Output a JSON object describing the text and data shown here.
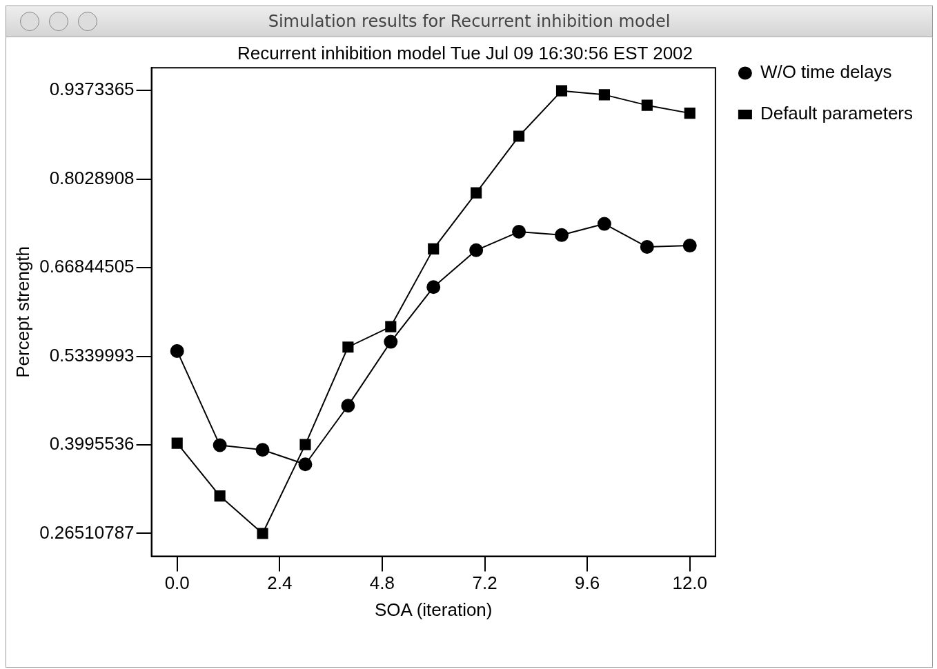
{
  "chart_data": {
    "type": "line",
    "title": "Simulation results for Recurrent inhibition model",
    "subtitle": "Recurrent inhibition model Tue Jul 09 16:30:56 EST 2002",
    "xlabel": "SOA (iteration)",
    "ylabel": "Percept strength",
    "x": [
      0,
      1,
      2,
      3,
      4,
      5,
      6,
      7,
      8,
      9,
      10,
      11,
      12
    ],
    "series": [
      {
        "name": "W/O time delays",
        "color": "#000000",
        "marker": "circle",
        "values": [
          0.542,
          0.399,
          0.392,
          0.37,
          0.459,
          0.556,
          0.639,
          0.695,
          0.723,
          0.718,
          0.735,
          0.7,
          0.702
        ]
      },
      {
        "name": "Default parameters",
        "color": "#000000",
        "marker": "square",
        "values": [
          0.402,
          0.322,
          0.265,
          0.4,
          0.548,
          0.579,
          0.697,
          0.782,
          0.868,
          0.937,
          0.931,
          0.915,
          0.903
        ]
      }
    ],
    "xlim": [
      -0.6,
      12.6
    ],
    "xticks": [
      {
        "value": 0,
        "label": "0.0"
      },
      {
        "value": 2.4,
        "label": "2.4"
      },
      {
        "value": 4.8,
        "label": "4.8"
      },
      {
        "value": 7.2,
        "label": "7.2"
      },
      {
        "value": 9.6,
        "label": "9.6"
      },
      {
        "value": 12,
        "label": "12.0"
      }
    ],
    "ylim": [
      0.2304,
      0.972
    ],
    "yticks": [
      0.26510787,
      0.3995536,
      0.5339993,
      0.66844505,
      0.8028908,
      0.9373365
    ],
    "grid": false,
    "legend": "top right",
    "line_style": "solid"
  }
}
